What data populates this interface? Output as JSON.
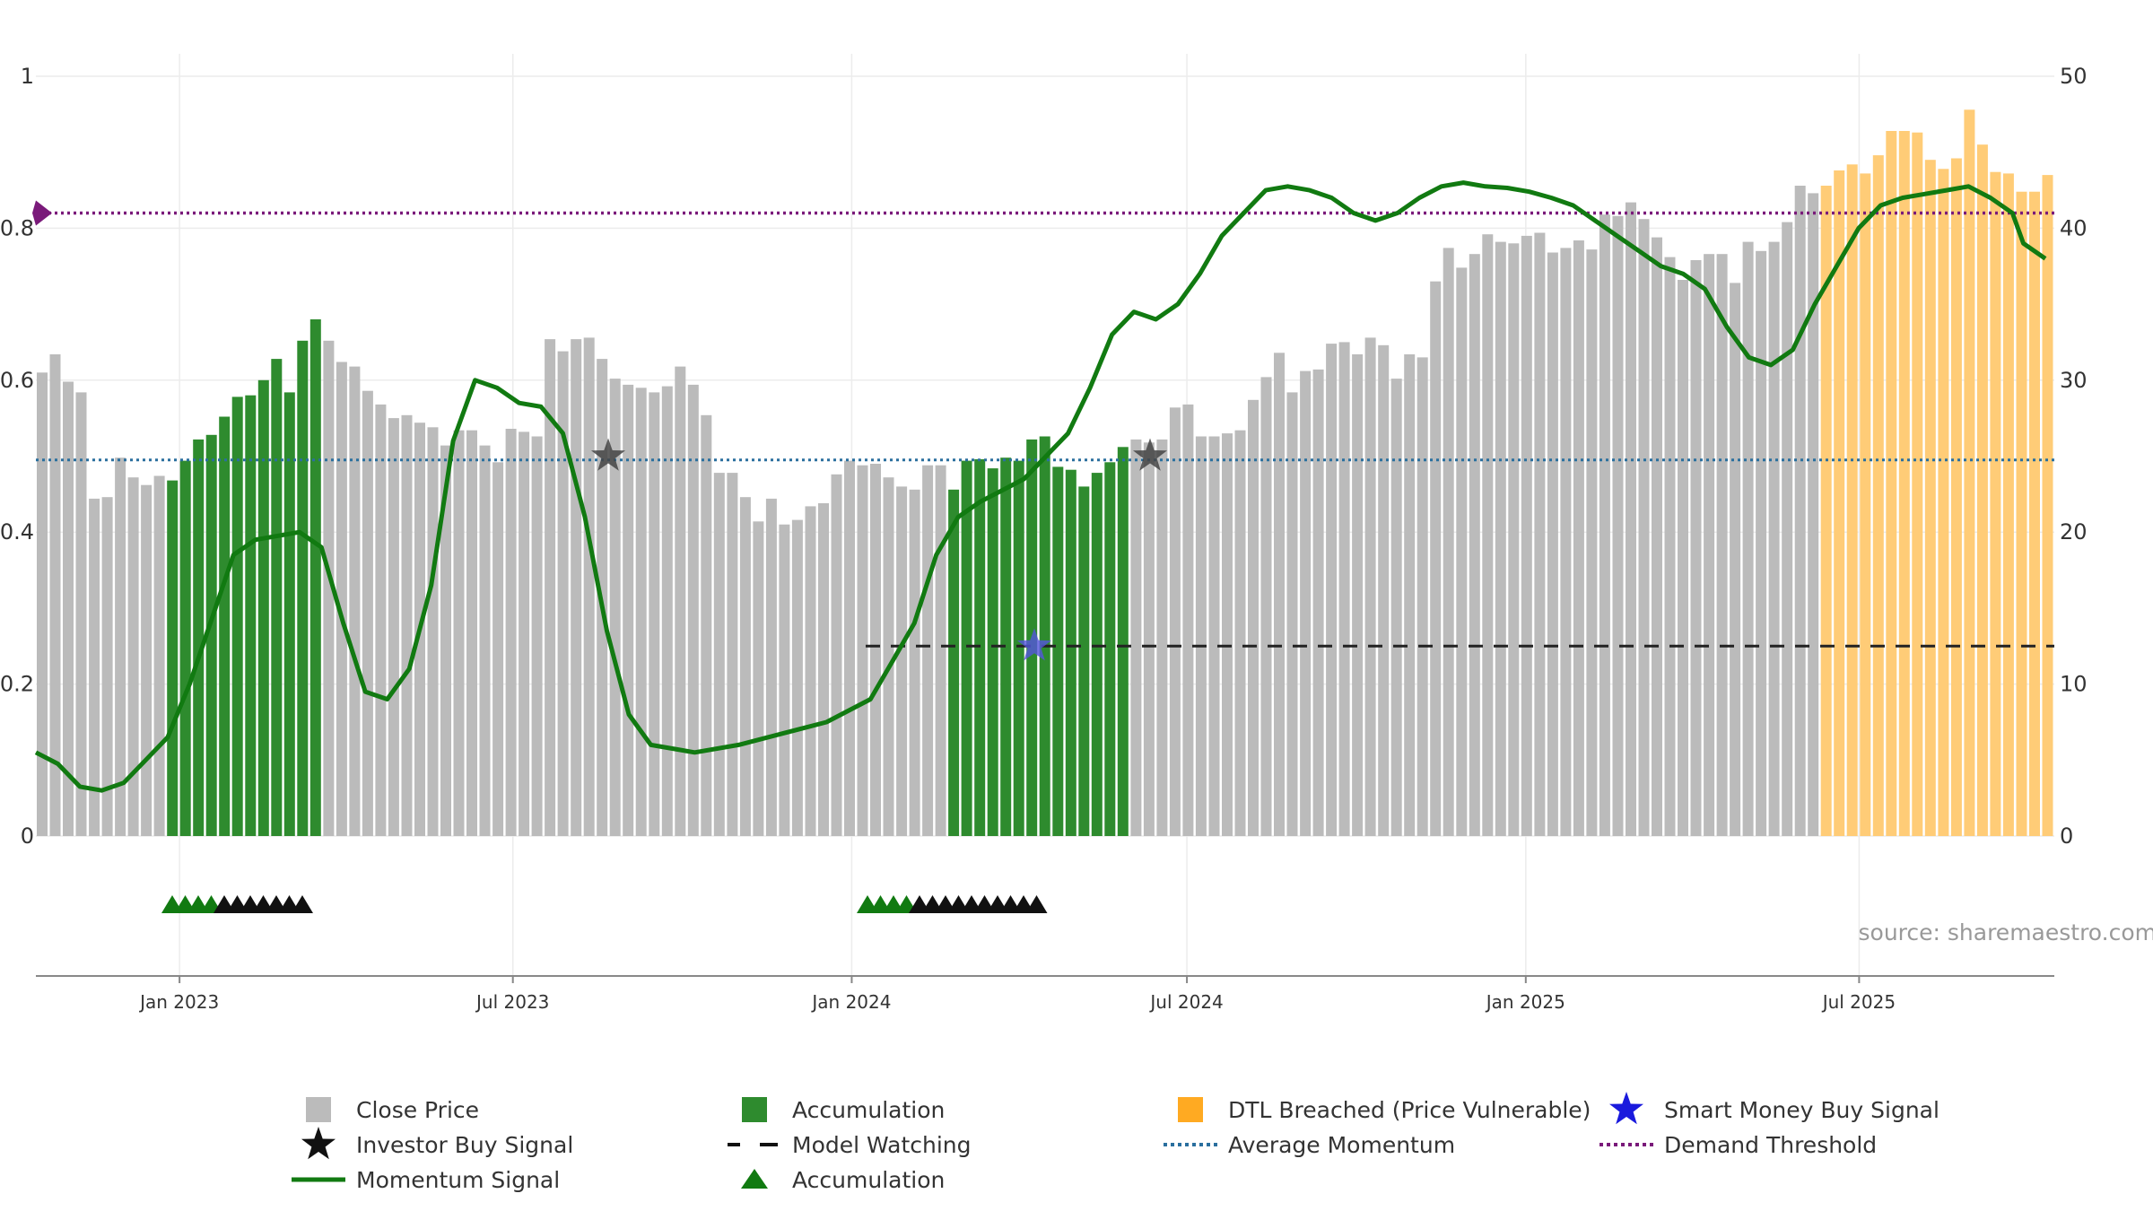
{
  "chart_data": {
    "type": "bar",
    "source_label": "source: sharemaestro.com",
    "left_axis": {
      "ticks": [
        "0",
        "0.2",
        "0.4",
        "0.6",
        "0.8",
        "1"
      ],
      "ylim": [
        0,
        1
      ]
    },
    "right_axis": {
      "ticks": [
        "0",
        "10",
        "20",
        "30",
        "40",
        "50"
      ],
      "ylim": [
        0,
        50
      ]
    },
    "x_axis": {
      "range": [
        "2022-10-15",
        "2025-10-15"
      ],
      "ticks": [
        {
          "date": "2023-01-01",
          "label": "Jan 2023"
        },
        {
          "date": "2023-07-01",
          "label": "Jul 2023"
        },
        {
          "date": "2024-01-01",
          "label": "Jan 2024"
        },
        {
          "date": "2024-07-01",
          "label": "Jul 2024"
        },
        {
          "date": "2025-01-01",
          "label": "Jan 2025"
        },
        {
          "date": "2025-07-01",
          "label": "Jul 2025"
        }
      ]
    },
    "series": [
      {
        "name": "Close Price",
        "color": "#bbbbbb",
        "values": [
          30.5,
          31.7,
          29.9,
          29.2,
          22.2,
          22.3,
          24.9,
          23.6,
          23.1,
          23.7,
          23.4,
          24.7,
          26.1,
          26.4,
          27.6,
          28.9,
          29,
          30,
          31.4,
          29.2,
          32.6,
          34,
          32.6,
          31.2,
          30.9,
          29.3,
          28.4,
          27.5,
          27.7,
          27.2,
          26.9,
          25.7,
          26.7,
          26.7,
          25.7,
          24.6,
          26.8,
          26.6,
          26.3,
          32.7,
          31.9,
          32.7,
          32.8,
          31.4,
          30.1,
          29.7,
          29.5,
          29.2,
          29.6,
          30.9,
          29.7,
          27.7,
          23.9,
          23.9,
          22.3,
          20.7,
          22.2,
          20.5,
          20.8,
          21.7,
          21.9,
          23.8,
          24.7,
          24.4,
          24.5,
          23.6,
          23,
          22.8,
          24.4,
          24.4,
          22.8,
          24.7,
          24.8,
          24.2,
          24.9,
          24.7,
          26.1,
          26.3,
          24.3,
          24.1,
          23,
          23.9,
          24.6,
          25.6,
          26.1,
          25.9,
          26.1,
          28.2,
          28.4,
          26.3,
          26.3,
          26.5,
          26.7,
          28.7,
          30.2,
          31.8,
          29.2,
          30.6,
          30.7,
          32.4,
          32.5,
          31.7,
          32.8,
          32.3,
          30.1,
          31.7,
          31.5,
          36.5,
          38.7,
          37.4,
          38.3,
          39.6,
          39.1,
          39,
          39.5,
          39.7,
          38.4,
          38.7,
          39.2,
          38.6,
          40.9,
          40.8,
          41.7,
          40.6,
          39.4,
          38.1,
          36.6,
          37.9,
          38.3,
          38.3,
          36.4,
          39.1,
          38.5,
          39.1,
          40.4,
          42.8,
          42.3,
          42.8,
          43.8,
          44.2,
          43.6,
          44.8,
          46.4,
          46.4,
          46.3,
          44.5,
          43.9,
          44.6,
          47.8,
          45.5,
          43.7,
          43.6,
          42.4,
          42.4,
          43.5
        ],
        "colors_by_index": {
          "accumulation": [
            10,
            21
          ],
          "dtl_breached": [
            137,
            157
          ]
        }
      },
      {
        "name": "Accumulation",
        "color": "#2e8b2e"
      },
      {
        "name": "DTL Breached (Price Vulnerable)",
        "color": "#ffcc77"
      },
      {
        "name": "Momentum Signal",
        "color": "#117a11",
        "points": [
          [
            0,
            0.11
          ],
          [
            10,
            0.095
          ],
          [
            20,
            0.065
          ],
          [
            30,
            0.06
          ],
          [
            40,
            0.07
          ],
          [
            50,
            0.1
          ],
          [
            60,
            0.13
          ],
          [
            70,
            0.2
          ],
          [
            90,
            0.37
          ],
          [
            100,
            0.39
          ],
          [
            110,
            0.395
          ],
          [
            120,
            0.4
          ],
          [
            130,
            0.38
          ],
          [
            140,
            0.28
          ],
          [
            150,
            0.19
          ],
          [
            160,
            0.18
          ],
          [
            170,
            0.22
          ],
          [
            180,
            0.33
          ],
          [
            190,
            0.52
          ],
          [
            200,
            0.6
          ],
          [
            210,
            0.59
          ],
          [
            220,
            0.57
          ],
          [
            230,
            0.565
          ],
          [
            240,
            0.53
          ],
          [
            250,
            0.42
          ],
          [
            260,
            0.27
          ],
          [
            270,
            0.16
          ],
          [
            280,
            0.12
          ],
          [
            300,
            0.11
          ],
          [
            320,
            0.12
          ],
          [
            340,
            0.135
          ],
          [
            360,
            0.15
          ],
          [
            380,
            0.18
          ],
          [
            390,
            0.23
          ],
          [
            400,
            0.28
          ],
          [
            410,
            0.37
          ],
          [
            420,
            0.42
          ],
          [
            430,
            0.44
          ],
          [
            440,
            0.455
          ],
          [
            450,
            0.47
          ],
          [
            460,
            0.5
          ],
          [
            470,
            0.53
          ],
          [
            480,
            0.59
          ],
          [
            490,
            0.66
          ],
          [
            500,
            0.69
          ],
          [
            510,
            0.68
          ],
          [
            520,
            0.7
          ],
          [
            530,
            0.74
          ],
          [
            540,
            0.79
          ],
          [
            550,
            0.82
          ],
          [
            560,
            0.85
          ],
          [
            570,
            0.855
          ],
          [
            580,
            0.85
          ],
          [
            590,
            0.84
          ],
          [
            600,
            0.82
          ],
          [
            610,
            0.81
          ],
          [
            620,
            0.82
          ],
          [
            630,
            0.84
          ],
          [
            640,
            0.855
          ],
          [
            650,
            0.86
          ],
          [
            660,
            0.855
          ],
          [
            670,
            0.853
          ],
          [
            680,
            0.848
          ],
          [
            690,
            0.84
          ],
          [
            700,
            0.83
          ],
          [
            710,
            0.81
          ],
          [
            720,
            0.79
          ],
          [
            730,
            0.77
          ],
          [
            740,
            0.75
          ],
          [
            750,
            0.74
          ],
          [
            760,
            0.72
          ],
          [
            770,
            0.67
          ],
          [
            780,
            0.63
          ],
          [
            790,
            0.62
          ],
          [
            800,
            0.64
          ],
          [
            810,
            0.7
          ],
          [
            820,
            0.75
          ],
          [
            830,
            0.8
          ],
          [
            840,
            0.83
          ],
          [
            850,
            0.84
          ],
          [
            860,
            0.845
          ],
          [
            870,
            0.85
          ],
          [
            880,
            0.855
          ],
          [
            890,
            0.84
          ],
          [
            900,
            0.82
          ],
          [
            905,
            0.78
          ],
          [
            915,
            0.76
          ]
        ]
      },
      {
        "name": "Average Momentum",
        "color": "#2a6f9e",
        "value": 0.495
      },
      {
        "name": "Demand Threshold",
        "color": "#7a1a7a",
        "value": 0.82
      },
      {
        "name": "Model Watching",
        "color": "#222222",
        "value": 0.25
      }
    ],
    "investor_buy_signals": [
      {
        "momentum": 0.5
      },
      {
        "momentum": 0.5
      }
    ],
    "smart_money_buy_signals": [
      {
        "momentum": 0.25
      }
    ],
    "accumulation_markers": [
      {
        "green": 4,
        "black": 7
      },
      {
        "green": 4,
        "black": 10
      }
    ],
    "legend": [
      {
        "label": "Close Price",
        "marker": "square",
        "color": "#bbbbbb"
      },
      {
        "label": "Accumulation",
        "marker": "square",
        "color": "#2e8b2e"
      },
      {
        "label": "DTL Breached (Price Vulnerable)",
        "marker": "square",
        "color": "#ffaa22"
      },
      {
        "label": "Smart Money Buy Signal",
        "marker": "star",
        "color": "#1a1add"
      },
      {
        "label": "Investor Buy Signal",
        "marker": "star",
        "color": "#111111"
      },
      {
        "label": "Model Watching",
        "marker": "dash",
        "color": "#111111"
      },
      {
        "label": "Average Momentum",
        "marker": "dotted",
        "color": "#2a6f9e"
      },
      {
        "label": "Demand Threshold",
        "marker": "dotted",
        "color": "#7a1a7a"
      },
      {
        "label": "Momentum Signal",
        "marker": "line",
        "color": "#117a11"
      },
      {
        "label": "Accumulation",
        "marker": "triangle",
        "color": "#117a11"
      }
    ],
    "grid": true,
    "legend_position": "bottom"
  }
}
